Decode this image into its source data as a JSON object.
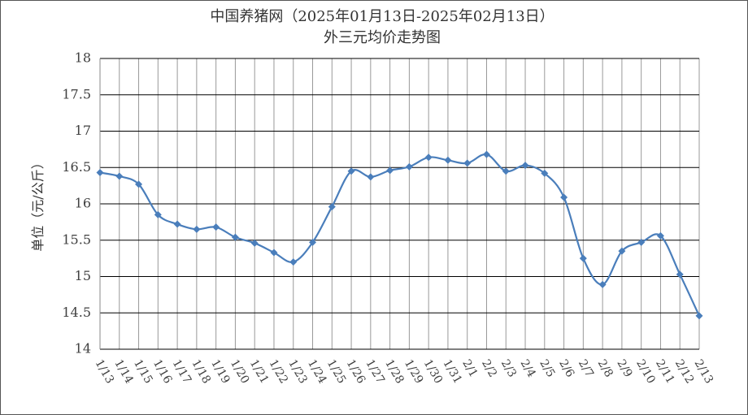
{
  "chart_data": {
    "type": "line",
    "title": "中国养猪网（2025年01月13日-2025年02月13日）",
    "subtitle": "外三元均价走势图",
    "y_label": "单位（元/公斤）",
    "categories": [
      "1/13",
      "1/14",
      "1/15",
      "1/16",
      "1/17",
      "1/18",
      "1/19",
      "1/20",
      "1/21",
      "1/22",
      "1/23",
      "1/24",
      "1/25",
      "1/26",
      "1/27",
      "1/28",
      "1/29",
      "1/30",
      "1/31",
      "2/1",
      "2/2",
      "2/3",
      "2/4",
      "2/5",
      "2/6",
      "2/7",
      "2/8",
      "2/9",
      "2/10",
      "2/11",
      "2/12",
      "2/13"
    ],
    "values": [
      16.43,
      16.38,
      16.27,
      15.85,
      15.72,
      15.65,
      15.68,
      15.54,
      15.46,
      15.33,
      15.2,
      15.47,
      15.96,
      16.45,
      16.37,
      16.46,
      16.51,
      16.64,
      16.6,
      16.56,
      16.68,
      16.45,
      16.53,
      16.42,
      16.09,
      15.25,
      14.89,
      15.35,
      15.47,
      15.56,
      15.03,
      14.46
    ],
    "color": "#4a7ebb",
    "ylim": [
      14,
      18
    ],
    "yticks": [
      14,
      14.5,
      15,
      15.5,
      16,
      16.5,
      17,
      17.5,
      18
    ],
    "grid": true
  }
}
